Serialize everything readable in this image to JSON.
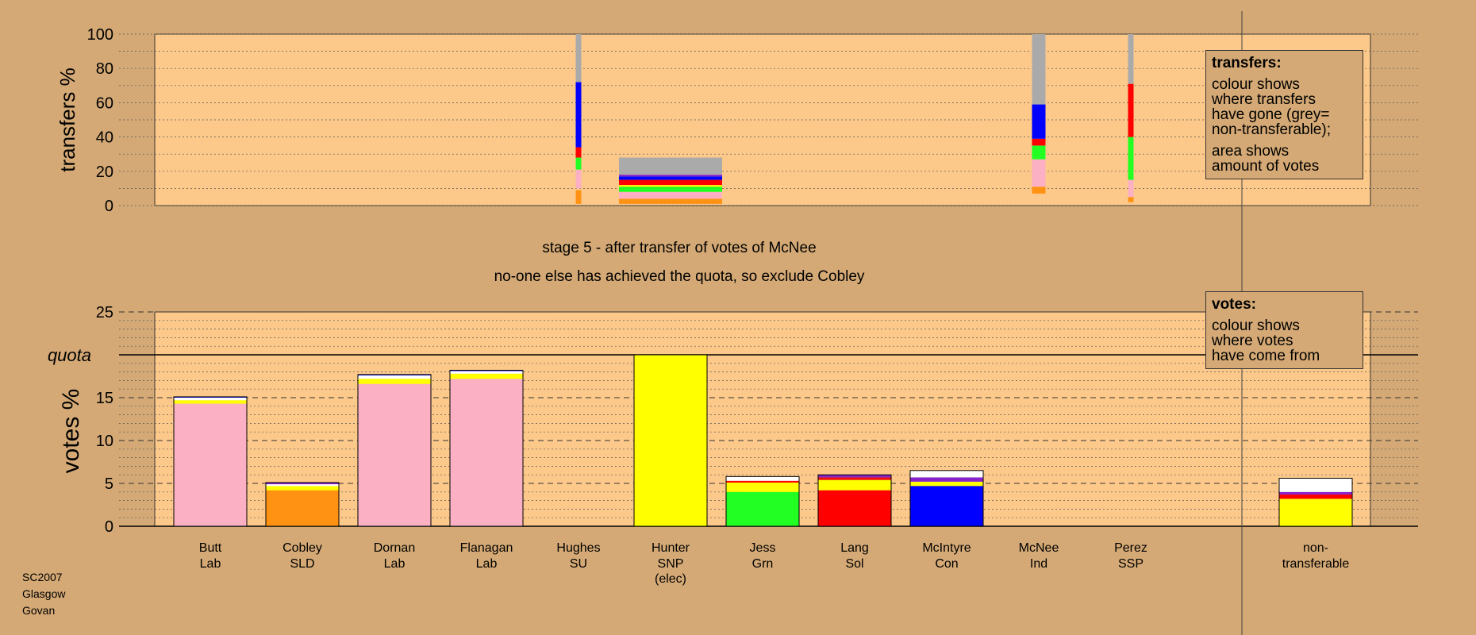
{
  "colors": {
    "background": "#d4a975",
    "panel": "#fdc98a",
    "Lab": "#fbb0c4",
    "SLD": "#ff9212",
    "SNP": "#ffff00",
    "Grn": "#22ff22",
    "Sol": "#ff0000",
    "Con": "#0000ff",
    "SSP": "#ee1111",
    "Ind": "#8822cc",
    "non-transferable": "#ffffff",
    "grey": "#aaaaaa"
  },
  "chart_data": [
    {
      "type": "bar",
      "panel": "transfers",
      "ylabel": "transfers %",
      "ylim": [
        0,
        100
      ],
      "yticks": [
        0,
        20,
        40,
        60,
        80,
        100
      ],
      "stacks": [
        {
          "category": "Hughes",
          "width": "narrow",
          "segments": [
            {
              "color": "SLD",
              "from": 1,
              "to": 9
            },
            {
              "color": "Lab",
              "from": 10,
              "to": 21
            },
            {
              "color": "Grn",
              "from": 21,
              "to": 28
            },
            {
              "color": "Sol",
              "from": 28,
              "to": 34
            },
            {
              "color": "Con",
              "from": 34,
              "to": 72
            },
            {
              "color": "grey",
              "from": 72,
              "to": 100
            }
          ]
        },
        {
          "category": "Hunter",
          "width": "wide",
          "segments": [
            {
              "color": "SLD",
              "from": 1,
              "to": 4
            },
            {
              "color": "Lab",
              "from": 4,
              "to": 8
            },
            {
              "color": "Grn",
              "from": 8,
              "to": 11
            },
            {
              "color": "SNP",
              "from": 11,
              "to": 12
            },
            {
              "color": "Sol",
              "from": 12,
              "to": 15
            },
            {
              "color": "Con",
              "from": 15,
              "to": 17
            },
            {
              "color": "Ind",
              "from": 17,
              "to": 18
            },
            {
              "color": "grey",
              "from": 18,
              "to": 28
            }
          ]
        },
        {
          "category": "McNee",
          "width": "medium",
          "segments": [
            {
              "color": "SLD",
              "from": 7,
              "to": 11
            },
            {
              "color": "Lab",
              "from": 11,
              "to": 27
            },
            {
              "color": "Grn",
              "from": 27,
              "to": 35
            },
            {
              "color": "Sol",
              "from": 35,
              "to": 39
            },
            {
              "color": "Con",
              "from": 39,
              "to": 59
            },
            {
              "color": "grey",
              "from": 59,
              "to": 100
            }
          ]
        },
        {
          "category": "Perez",
          "width": "narrow",
          "segments": [
            {
              "color": "SLD",
              "from": 2,
              "to": 5
            },
            {
              "color": "Lab",
              "from": 5,
              "to": 15
            },
            {
              "color": "Grn",
              "from": 15,
              "to": 40
            },
            {
              "color": "Sol",
              "from": 40,
              "to": 71
            },
            {
              "color": "grey",
              "from": 71,
              "to": 100
            }
          ]
        }
      ]
    },
    {
      "type": "bar",
      "panel": "votes",
      "ylabel": "votes %",
      "ylim": [
        0,
        25
      ],
      "yticks": [
        0,
        5,
        10,
        15,
        20,
        25
      ],
      "quota": 20,
      "quota_label": "quota",
      "categories": [
        "Butt Lab",
        "Cobley SLD",
        "Dornan Lab",
        "Flanagan Lab",
        "Hughes SU",
        "Hunter SNP (elec)",
        "Jess Grn",
        "Lang Sol",
        "McIntyre Con",
        "McNee Ind",
        "Perez SSP",
        "non-transferable"
      ],
      "stacks": [
        [
          {
            "color": "Lab",
            "value": 14.3
          },
          {
            "color": "SNP",
            "value": 0.4
          },
          {
            "color": "non-transferable",
            "value": 0.3
          },
          {
            "color": "Con",
            "value": 0.1
          }
        ],
        [
          {
            "color": "SLD",
            "value": 4.2
          },
          {
            "color": "SNP",
            "value": 0.5
          },
          {
            "color": "non-transferable",
            "value": 0.2
          },
          {
            "color": "Ind",
            "value": 0.2
          }
        ],
        [
          {
            "color": "Lab",
            "value": 16.6
          },
          {
            "color": "SNP",
            "value": 0.6
          },
          {
            "color": "non-transferable",
            "value": 0.4
          },
          {
            "color": "Con",
            "value": 0.1
          }
        ],
        [
          {
            "color": "Lab",
            "value": 17.2
          },
          {
            "color": "SNP",
            "value": 0.6
          },
          {
            "color": "non-transferable",
            "value": 0.3
          },
          {
            "color": "Con",
            "value": 0.1
          }
        ],
        [],
        [
          {
            "color": "SNP",
            "value": 20
          }
        ],
        [
          {
            "color": "Grn",
            "value": 4.0
          },
          {
            "color": "SNP",
            "value": 1.1
          },
          {
            "color": "Sol",
            "value": 0.2
          },
          {
            "color": "non-transferable",
            "value": 0.5
          }
        ],
        [
          {
            "color": "Sol",
            "value": 4.2
          },
          {
            "color": "SNP",
            "value": 1.2
          },
          {
            "color": "SSP",
            "value": 0.3
          },
          {
            "color": "Ind",
            "value": 0.3
          }
        ],
        [
          {
            "color": "Con",
            "value": 4.7
          },
          {
            "color": "SNP",
            "value": 0.5
          },
          {
            "color": "Ind",
            "value": 0.5
          },
          {
            "color": "non-transferable",
            "value": 0.8
          }
        ],
        [],
        [],
        [
          {
            "color": "SNP",
            "value": 3.2
          },
          {
            "color": "Sol",
            "value": 0.5
          },
          {
            "color": "Ind",
            "value": 0.3
          },
          {
            "color": "non-transferable",
            "value": 1.6
          }
        ]
      ]
    }
  ],
  "candidates": [
    {
      "name": "Butt",
      "party": "Lab"
    },
    {
      "name": "Cobley",
      "party": "SLD"
    },
    {
      "name": "Dornan",
      "party": "Lab"
    },
    {
      "name": "Flanagan",
      "party": "Lab"
    },
    {
      "name": "Hughes",
      "party": "SU"
    },
    {
      "name": "Hunter",
      "party": "SNP",
      "note": "(elec)"
    },
    {
      "name": "Jess",
      "party": "Grn"
    },
    {
      "name": "Lang",
      "party": "Sol"
    },
    {
      "name": "McIntyre",
      "party": "Con"
    },
    {
      "name": "McNee",
      "party": "Ind"
    },
    {
      "name": "Perez",
      "party": "SSP"
    },
    {
      "name": "non-",
      "party": "transferable"
    }
  ],
  "stage_title": "stage 5 - after transfer of votes of McNee",
  "stage_subtitle": "no-one else has achieved the quota, so exclude Cobley",
  "transfers_legend": {
    "title": "transfers:",
    "line1": "colour shows",
    "line2": "where transfers",
    "line3": "have gone (grey=",
    "line4": "non-transferable);",
    "line5": "area shows",
    "line6": "amount of votes"
  },
  "votes_legend": {
    "title": "votes:",
    "line1": "colour shows",
    "line2": "where votes",
    "line3": "have come from"
  },
  "caption": {
    "line1": "SC2007",
    "line2": "Glasgow",
    "line3": "Govan"
  }
}
